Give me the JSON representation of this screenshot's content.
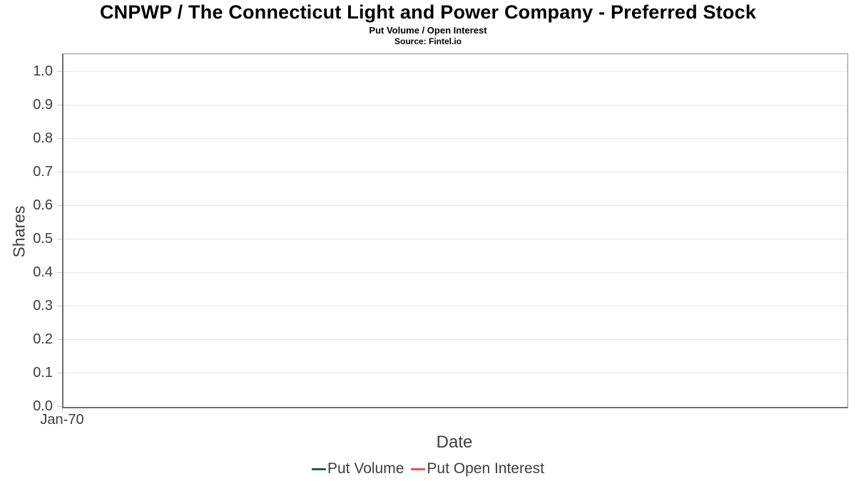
{
  "chart_data": {
    "type": "line",
    "title": "CNPWP / The Connecticut Light and Power Company - Preferred Stock",
    "subtitle": "Put Volume / Open Interest",
    "source": "Source: Fintel.io",
    "xlabel": "Date",
    "ylabel": "Shares",
    "x_ticks": [
      "Jan-70"
    ],
    "y_ticks": [
      "0.0",
      "0.1",
      "0.2",
      "0.3",
      "0.4",
      "0.5",
      "0.6",
      "0.7",
      "0.8",
      "0.9",
      "1.0"
    ],
    "ylim": [
      0.0,
      1.05
    ],
    "grid": true,
    "legend_position": "bottom",
    "series": [
      {
        "name": "Put Volume",
        "color": "#2c5c38",
        "x": [],
        "values": []
      },
      {
        "name": "Put Open Interest",
        "color": "#f05152",
        "x": [],
        "values": []
      }
    ]
  },
  "colors": {
    "background": "#ffffff",
    "plot_border": "#8a8a8a",
    "axis_line": "#6e6e6e",
    "gridline": "#e6e6e6",
    "tick_mark": "#c9c9c9",
    "tick_text": "#3d3d3d",
    "title_text": "#000000"
  }
}
